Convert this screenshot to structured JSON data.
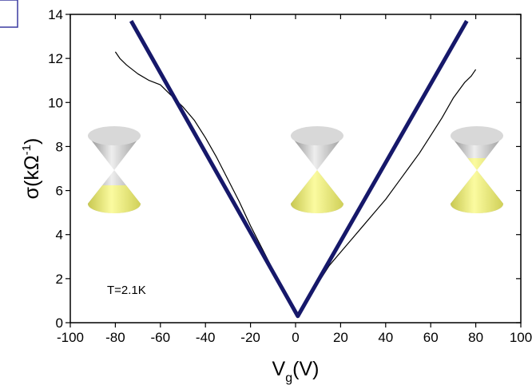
{
  "chart_data": {
    "type": "line",
    "xlabel": "V",
    "xlabel_sub": "g",
    "xlabel_end": "(V)",
    "ylabel": "σ(kΩ",
    "ylabel_sup": "-1",
    "ylabel_end": ")",
    "annotation": "T=2.1K",
    "xlim": [
      -100,
      100
    ],
    "xticks": [
      -100,
      -80,
      -60,
      -40,
      -20,
      0,
      20,
      40,
      60,
      80,
      100
    ],
    "ylim": [
      0,
      14
    ],
    "yticks": [
      0,
      2,
      4,
      6,
      8,
      10,
      12,
      14
    ],
    "series": [
      {
        "color": "#000000",
        "x": [
          -80,
          -78,
          -75,
          -70,
          -65,
          -60,
          -55,
          -50,
          -45,
          -40,
          -35,
          -30,
          -25,
          -20,
          -15,
          -10,
          -5,
          -2,
          0,
          1,
          2,
          5,
          10,
          15,
          20,
          25,
          30,
          35,
          40,
          45,
          50,
          55,
          60,
          65,
          70,
          75,
          78,
          80
        ],
        "values": [
          12.3,
          12.0,
          11.7,
          11.3,
          11.0,
          10.8,
          10.3,
          9.8,
          9.2,
          8.4,
          7.5,
          6.5,
          5.5,
          4.4,
          3.4,
          2.4,
          1.4,
          0.8,
          0.4,
          0.3,
          0.5,
          1.0,
          1.8,
          2.6,
          3.2,
          3.8,
          4.4,
          5.0,
          5.6,
          6.3,
          7.0,
          7.7,
          8.5,
          9.3,
          10.2,
          10.9,
          11.2,
          11.5
        ]
      },
      {
        "color": "#16186a",
        "x": [
          -73,
          1,
          76
        ],
        "values": [
          13.7,
          0.3,
          13.7
        ]
      }
    ]
  }
}
